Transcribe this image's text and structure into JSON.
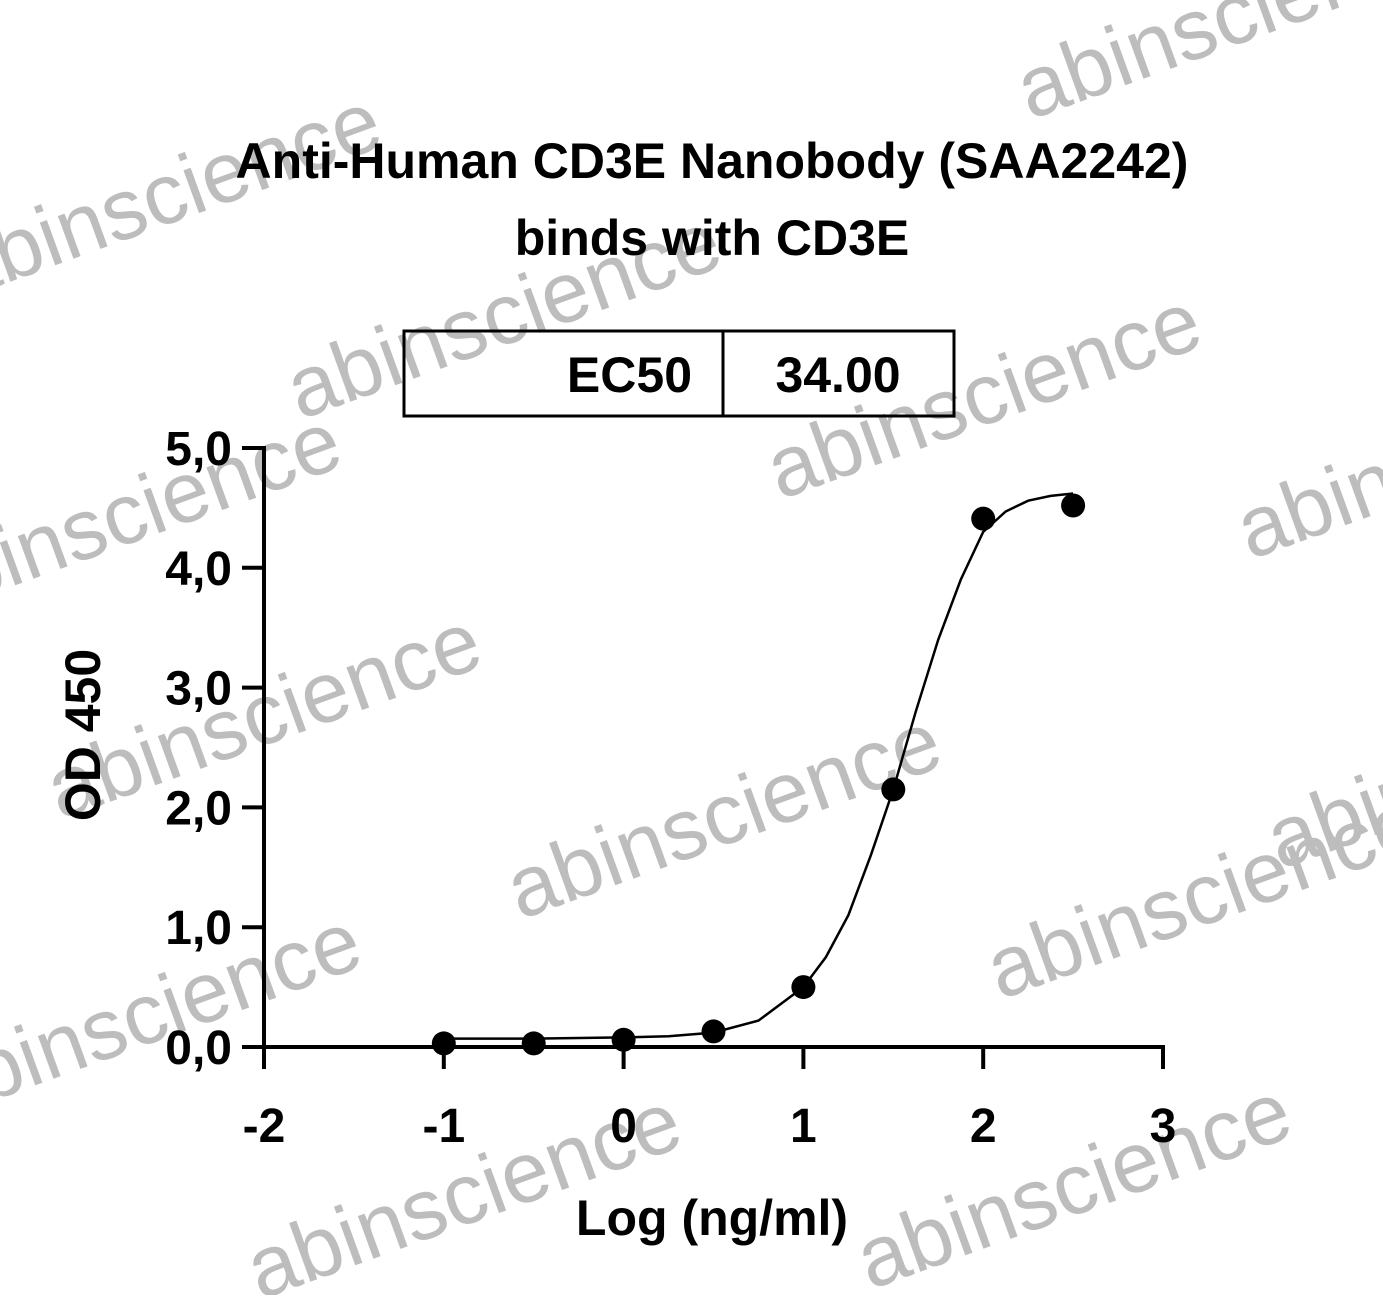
{
  "chart_data": {
    "type": "scatter",
    "title": [
      "Anti-Human CD3E Nanobody (SAA2242)",
      "binds with CD3E"
    ],
    "annotation_table": [
      "EC50",
      "34.00"
    ],
    "watermark": "abinscience",
    "x_label": "Log (ng/ml)",
    "y_label": "OD 450",
    "xlim": [
      -2,
      3
    ],
    "xticks": [
      -2,
      -1,
      0,
      1,
      2,
      3
    ],
    "ylim": [
      0,
      5
    ],
    "yticks": [
      {
        "value": 0,
        "label": "0,0"
      },
      {
        "value": 1,
        "label": "1,0"
      },
      {
        "value": 2,
        "label": "2,0"
      },
      {
        "value": 3,
        "label": "3,0"
      },
      {
        "value": 4,
        "label": "4,0"
      },
      {
        "value": 5,
        "label": "5,0"
      }
    ],
    "series": [
      {
        "type": "scatter",
        "color": "#000000",
        "x": [
          -1,
          -0.5,
          0,
          0.5,
          1,
          1.5,
          2,
          2.5
        ],
        "values": [
          0.03,
          0.03,
          0.06,
          0.13,
          0.5,
          2.15,
          4.41,
          4.52
        ]
      },
      {
        "type": "line",
        "color": "#000000",
        "x": [
          -1,
          -0.5,
          0,
          0.25,
          0.5,
          0.75,
          1,
          1.125,
          1.25,
          1.375,
          1.5,
          1.625,
          1.75,
          1.875,
          2,
          2.125,
          2.25,
          2.375,
          2.5
        ],
        "values": [
          0.07,
          0.07,
          0.08,
          0.09,
          0.12,
          0.22,
          0.5,
          0.75,
          1.1,
          1.6,
          2.15,
          2.8,
          3.4,
          3.9,
          4.3,
          4.47,
          4.56,
          4.6,
          4.62
        ]
      }
    ]
  }
}
